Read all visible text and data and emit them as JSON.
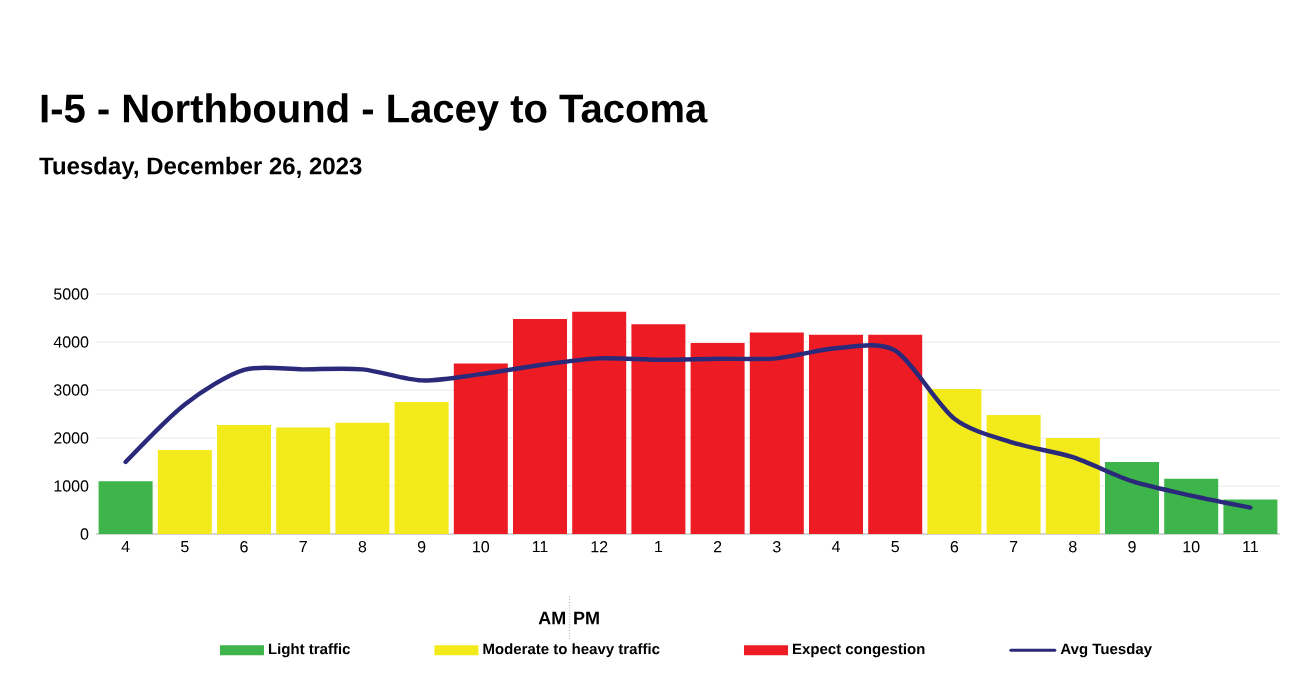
{
  "chart_data": {
    "type": "bar",
    "title": "I-5 - Northbound - Lacey to Tacoma",
    "subtitle": "Tuesday, December 26, 2023",
    "categories": [
      "4",
      "5",
      "6",
      "7",
      "8",
      "9",
      "10",
      "11",
      "12",
      "1",
      "2",
      "3",
      "4",
      "5",
      "6",
      "7",
      "8",
      "9",
      "10",
      "11"
    ],
    "series": [
      {
        "name": "Light traffic",
        "color": "#3db54a",
        "values": [
          1100,
          null,
          null,
          null,
          null,
          null,
          null,
          null,
          null,
          null,
          null,
          null,
          null,
          null,
          null,
          null,
          null,
          1500,
          1150,
          720
        ]
      },
      {
        "name": "Moderate to heavy traffic",
        "color": "#f2ea1a",
        "values": [
          null,
          1750,
          2270,
          2220,
          2320,
          2750,
          null,
          null,
          null,
          null,
          null,
          null,
          null,
          null,
          3020,
          2480,
          2000,
          null,
          null,
          null
        ]
      },
      {
        "name": "Expect congestion",
        "color": "#ed1c24",
        "values": [
          null,
          null,
          null,
          null,
          null,
          null,
          3550,
          4480,
          4630,
          4370,
          3980,
          4200,
          4150,
          4150,
          null,
          null,
          null,
          null,
          null,
          null
        ]
      },
      {
        "name": "Avg Tuesday",
        "type": "line",
        "color": "#2b2a7a",
        "values": [
          1500,
          2700,
          3420,
          3430,
          3430,
          3200,
          3330,
          3520,
          3660,
          3630,
          3650,
          3660,
          3870,
          3820,
          2400,
          1900,
          1600,
          1100,
          800,
          550
        ]
      }
    ],
    "ylim": [
      0,
      5000
    ],
    "yticks": [
      0,
      1000,
      2000,
      3000,
      4000,
      5000
    ],
    "grid": "y",
    "legend": "bottom",
    "annotations": [
      "AM",
      "PM"
    ]
  }
}
